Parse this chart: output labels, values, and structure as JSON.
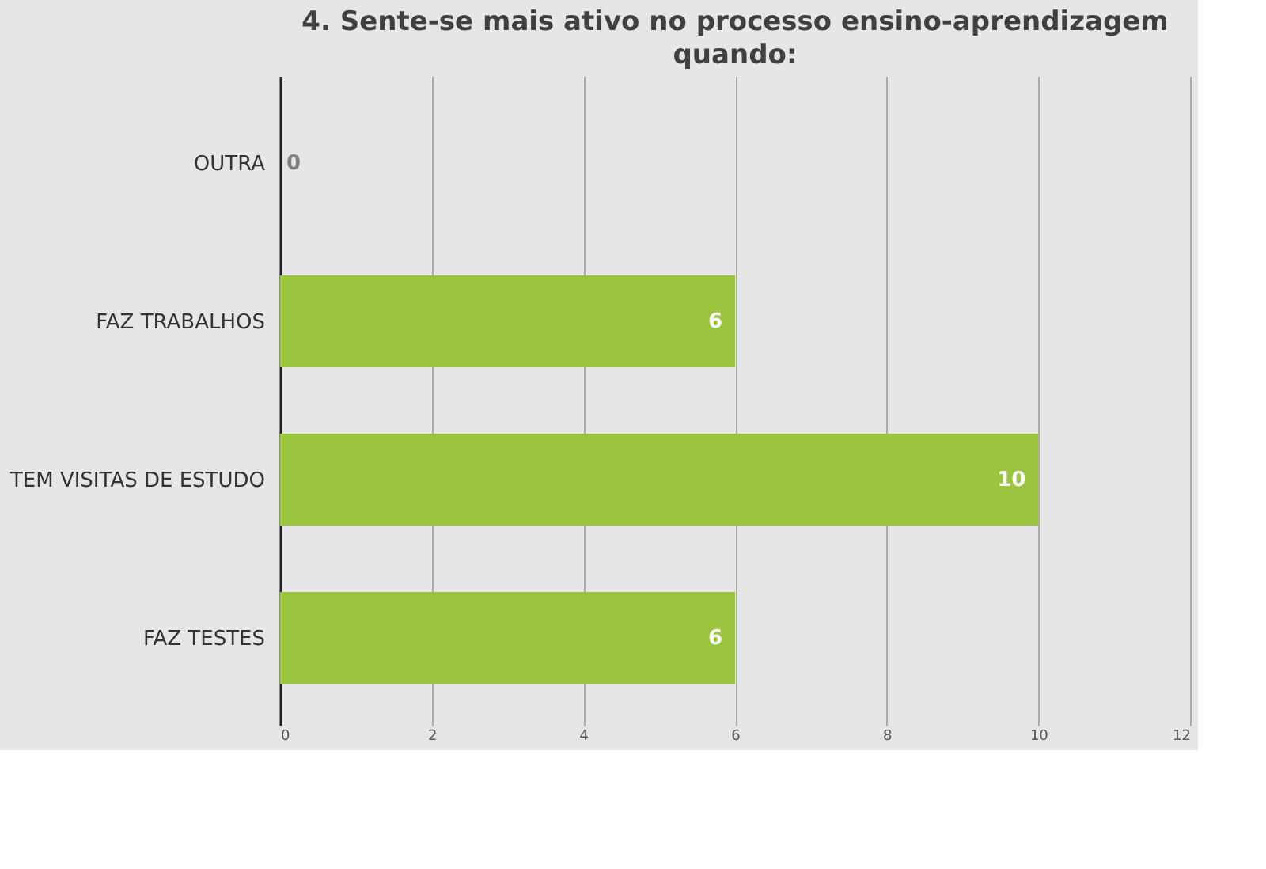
{
  "chart_data": {
    "type": "bar",
    "orientation": "horizontal",
    "title": "4. Sente-se mais ativo no processo ensino-aprendizagem quando:",
    "categories": [
      "OUTRA",
      "FAZ TRABALHOS",
      "TEM VISITAS DE ESTUDO",
      "FAZ TESTES"
    ],
    "values": [
      0,
      6,
      10,
      6
    ],
    "color": "#9bc43f",
    "xlim": [
      0,
      12
    ],
    "xticks": [
      0,
      2,
      4,
      6,
      8,
      10,
      12
    ],
    "grid": "x",
    "data_labels": true
  }
}
